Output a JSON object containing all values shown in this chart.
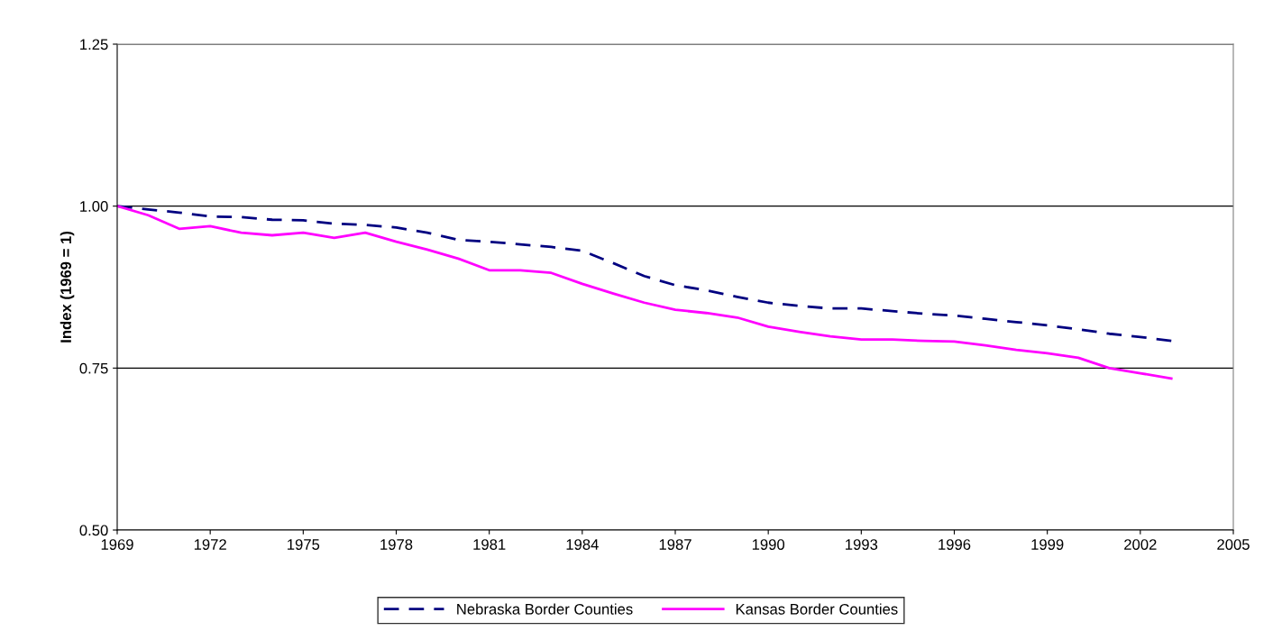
{
  "chart_data": {
    "type": "line",
    "ylabel": "Index (1969 = 1)",
    "x": [
      1969,
      1970,
      1971,
      1972,
      1973,
      1974,
      1975,
      1976,
      1977,
      1978,
      1979,
      1980,
      1981,
      1982,
      1983,
      1984,
      1985,
      1986,
      1987,
      1988,
      1989,
      1990,
      1991,
      1992,
      1993,
      1994,
      1995,
      1996,
      1997,
      1998,
      1999,
      2000,
      2001,
      2002,
      2003
    ],
    "series": [
      {
        "name": "Nebraska Border Counties",
        "color": "#000080",
        "line_style": "dashed",
        "values": [
          1.0,
          0.995,
          0.99,
          0.984,
          0.983,
          0.979,
          0.978,
          0.973,
          0.971,
          0.967,
          0.959,
          0.948,
          0.945,
          0.941,
          0.937,
          0.931,
          0.912,
          0.892,
          0.878,
          0.87,
          0.86,
          0.851,
          0.846,
          0.842,
          0.842,
          0.838,
          0.834,
          0.831,
          0.826,
          0.821,
          0.816,
          0.81,
          0.803,
          0.798,
          0.792
        ]
      },
      {
        "name": "Kansas Border Counties",
        "color": "#ff00ff",
        "line_style": "solid",
        "values": [
          1.0,
          0.986,
          0.965,
          0.969,
          0.959,
          0.955,
          0.959,
          0.951,
          0.959,
          0.945,
          0.933,
          0.919,
          0.901,
          0.901,
          0.897,
          0.88,
          0.865,
          0.851,
          0.84,
          0.835,
          0.828,
          0.814,
          0.806,
          0.799,
          0.794,
          0.794,
          0.792,
          0.791,
          0.785,
          0.778,
          0.773,
          0.766,
          0.75,
          0.742,
          0.734
        ]
      }
    ],
    "xlim": [
      1969,
      2005
    ],
    "xticks": [
      1969,
      1972,
      1975,
      1978,
      1981,
      1984,
      1987,
      1990,
      1993,
      1996,
      1999,
      2002,
      2005
    ],
    "ylim": [
      0.5,
      1.25
    ],
    "yticks": [
      {
        "value": 0.5,
        "label": "0.50"
      },
      {
        "value": 0.75,
        "label": "0.75"
      },
      {
        "value": 1.0,
        "label": "1.00"
      },
      {
        "value": 1.25,
        "label": "1.25"
      }
    ],
    "grid": "y",
    "legend": "bottom",
    "marker": "none"
  }
}
